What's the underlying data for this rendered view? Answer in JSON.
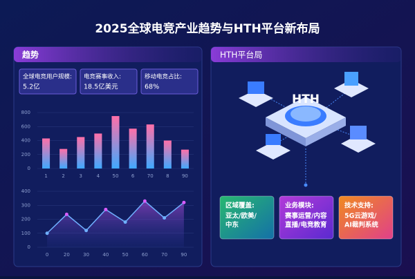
{
  "header": {
    "title": "2025全球电竞产业趋势与HTH平台新布局"
  },
  "left_panel": {
    "title": "趋势",
    "stats": [
      {
        "label": "全球电竞用户规模:",
        "value": "5.2亿"
      },
      {
        "label": "电竞赛事收入:",
        "value": "18.5亿美元"
      },
      {
        "label": "移动电竞占比:",
        "value": "68%"
      }
    ]
  },
  "chart_data": [
    {
      "type": "bar",
      "categories": [
        "1",
        "2",
        "3",
        "4",
        "50",
        "6",
        "70",
        "8",
        "90"
      ],
      "values": [
        430,
        280,
        450,
        500,
        750,
        570,
        630,
        400,
        270
      ],
      "colors": [
        "#ff6fa8",
        "#3fa9ff"
      ],
      "ylim": [
        0,
        800
      ],
      "yticks": [
        0,
        200,
        400,
        600,
        800
      ],
      "grid": true
    },
    {
      "type": "line",
      "categories": [
        "0",
        "20",
        "30",
        "40",
        "50",
        "60",
        "70",
        "90"
      ],
      "values": [
        100,
        235,
        120,
        270,
        180,
        330,
        210,
        320
      ],
      "color": "#6fb0ff",
      "ylim": [
        0,
        400
      ],
      "yticks": [
        0,
        100,
        200,
        300,
        400
      ],
      "grid": true
    }
  ],
  "right_panel": {
    "title": "HTH平台局",
    "diagram_label": "HTH",
    "cards": [
      {
        "title": "区域覆盖:",
        "lines": [
          "亚太/欧美/",
          "中东"
        ]
      },
      {
        "title": "业务模块:",
        "lines": [
          "赛事运营/内容",
          "直播/电竞教育"
        ]
      },
      {
        "title": "技术支持:",
        "lines": [
          "5G云游戏/",
          "AI裁判系统"
        ]
      }
    ]
  }
}
